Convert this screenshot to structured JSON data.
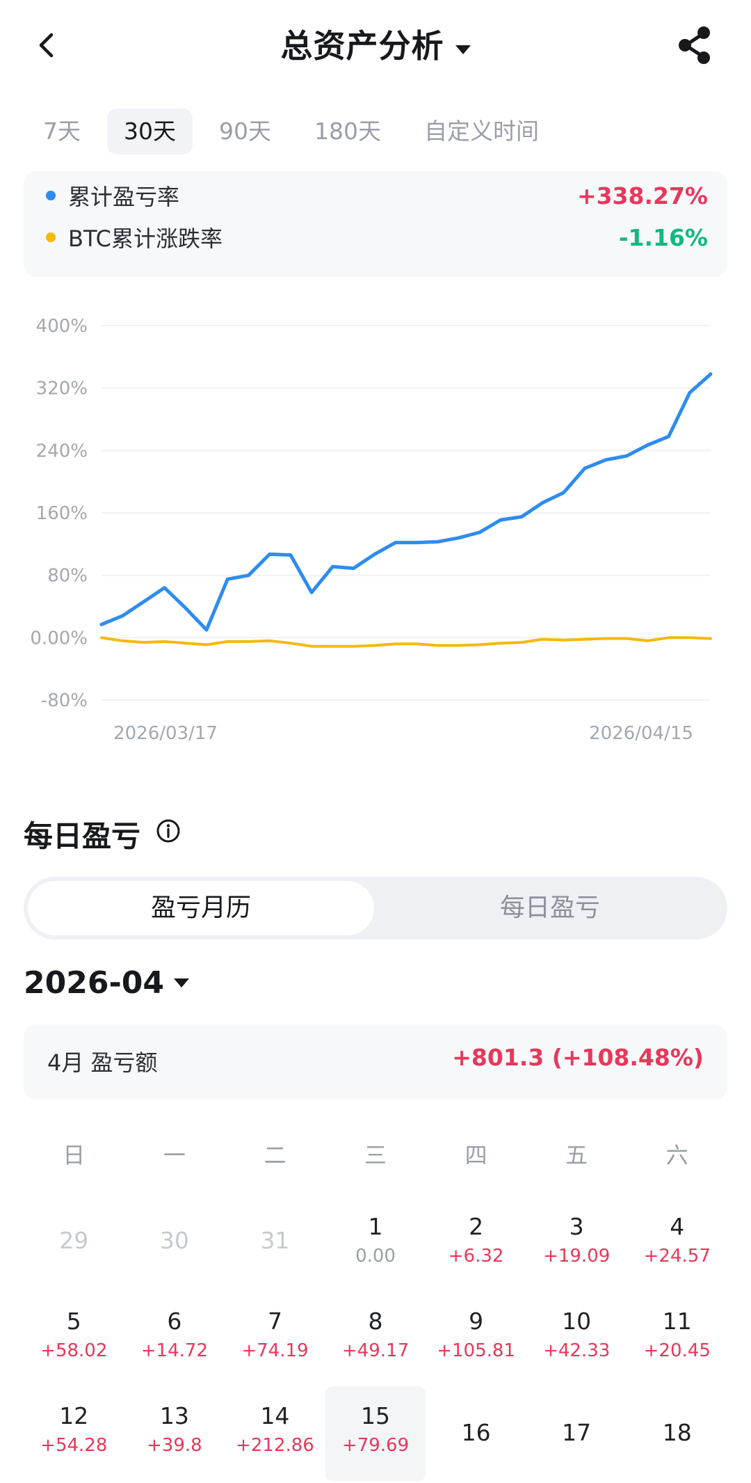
{
  "header": {
    "title": "总资产分析",
    "back_icon": "chevron-left-icon",
    "share_icon": "share-icon"
  },
  "tabs": [
    {
      "label": "7天",
      "active": false
    },
    {
      "label": "30天",
      "active": true
    },
    {
      "label": "90天",
      "active": false
    },
    {
      "label": "180天",
      "active": false
    },
    {
      "label": "自定义时间",
      "active": false
    }
  ],
  "legend": {
    "cumulative": {
      "label": "累计盈亏率",
      "value": "+338.27%",
      "color": "#2d8cf0",
      "value_color": "#e8375a"
    },
    "btc": {
      "label": "BTC累计涨跌率",
      "value": "-1.16%",
      "color": "#f5b90c",
      "value_color": "#10b981"
    }
  },
  "chart_data": {
    "type": "line",
    "x_labels": [
      "2026/03/17",
      "2026/04/15"
    ],
    "y_ticks": [
      "400%",
      "320%",
      "240%",
      "160%",
      "80%",
      "0.00%",
      "-80%"
    ],
    "y_tick_values": [
      400,
      320,
      240,
      160,
      80,
      0,
      -80
    ],
    "ylim": [
      -80,
      400
    ],
    "grid": true,
    "series": [
      {
        "name": "累计盈亏率",
        "color": "#2d8cf0",
        "values": [
          17,
          28,
          46,
          64,
          38,
          10,
          75,
          80,
          107,
          106,
          58,
          91,
          89,
          107,
          122,
          122,
          123,
          128,
          135,
          151,
          155,
          173,
          186,
          217,
          228,
          233,
          247,
          258,
          314,
          338
        ]
      },
      {
        "name": "BTC累计涨跌率",
        "color": "#f5b90c",
        "values": [
          0,
          -4,
          -6,
          -5,
          -7,
          -9,
          -5,
          -5,
          -4,
          -7,
          -11,
          -11,
          -11,
          -10,
          -8,
          -8,
          -10,
          -10,
          -9,
          -7,
          -6,
          -2,
          -3,
          -2,
          -1,
          -1,
          -4,
          0,
          0,
          -1.16
        ]
      }
    ]
  },
  "daily": {
    "section_title": "每日盈亏",
    "info_icon": "info-icon",
    "segments": {
      "active": "盈亏月历",
      "inactive": "每日盈亏"
    },
    "month": "2026-04",
    "month_summary": {
      "label": "4月 盈亏额",
      "value": "+801.3 (+108.48%)"
    },
    "weekdays": [
      "日",
      "一",
      "二",
      "三",
      "四",
      "五",
      "六"
    ],
    "rows": [
      [
        {
          "day": "29",
          "pnl": "",
          "state": "out"
        },
        {
          "day": "30",
          "pnl": "",
          "state": "out"
        },
        {
          "day": "31",
          "pnl": "",
          "state": "out"
        },
        {
          "day": "1",
          "pnl": "0.00",
          "state": "zero"
        },
        {
          "day": "2",
          "pnl": "+6.32",
          "state": "pos"
        },
        {
          "day": "3",
          "pnl": "+19.09",
          "state": "pos"
        },
        {
          "day": "4",
          "pnl": "+24.57",
          "state": "pos"
        }
      ],
      [
        {
          "day": "5",
          "pnl": "+58.02",
          "state": "pos"
        },
        {
          "day": "6",
          "pnl": "+14.72",
          "state": "pos"
        },
        {
          "day": "7",
          "pnl": "+74.19",
          "state": "pos"
        },
        {
          "day": "8",
          "pnl": "+49.17",
          "state": "pos"
        },
        {
          "day": "9",
          "pnl": "+105.81",
          "state": "pos"
        },
        {
          "day": "10",
          "pnl": "+42.33",
          "state": "pos"
        },
        {
          "day": "11",
          "pnl": "+20.45",
          "state": "pos"
        }
      ],
      [
        {
          "day": "12",
          "pnl": "+54.28",
          "state": "pos"
        },
        {
          "day": "13",
          "pnl": "+39.8",
          "state": "pos"
        },
        {
          "day": "14",
          "pnl": "+212.86",
          "state": "pos"
        },
        {
          "day": "15",
          "pnl": "+79.69",
          "state": "today"
        },
        {
          "day": "16",
          "pnl": "",
          "state": "nodata"
        },
        {
          "day": "17",
          "pnl": "",
          "state": "nodata"
        },
        {
          "day": "18",
          "pnl": "",
          "state": "nodata"
        }
      ]
    ]
  }
}
